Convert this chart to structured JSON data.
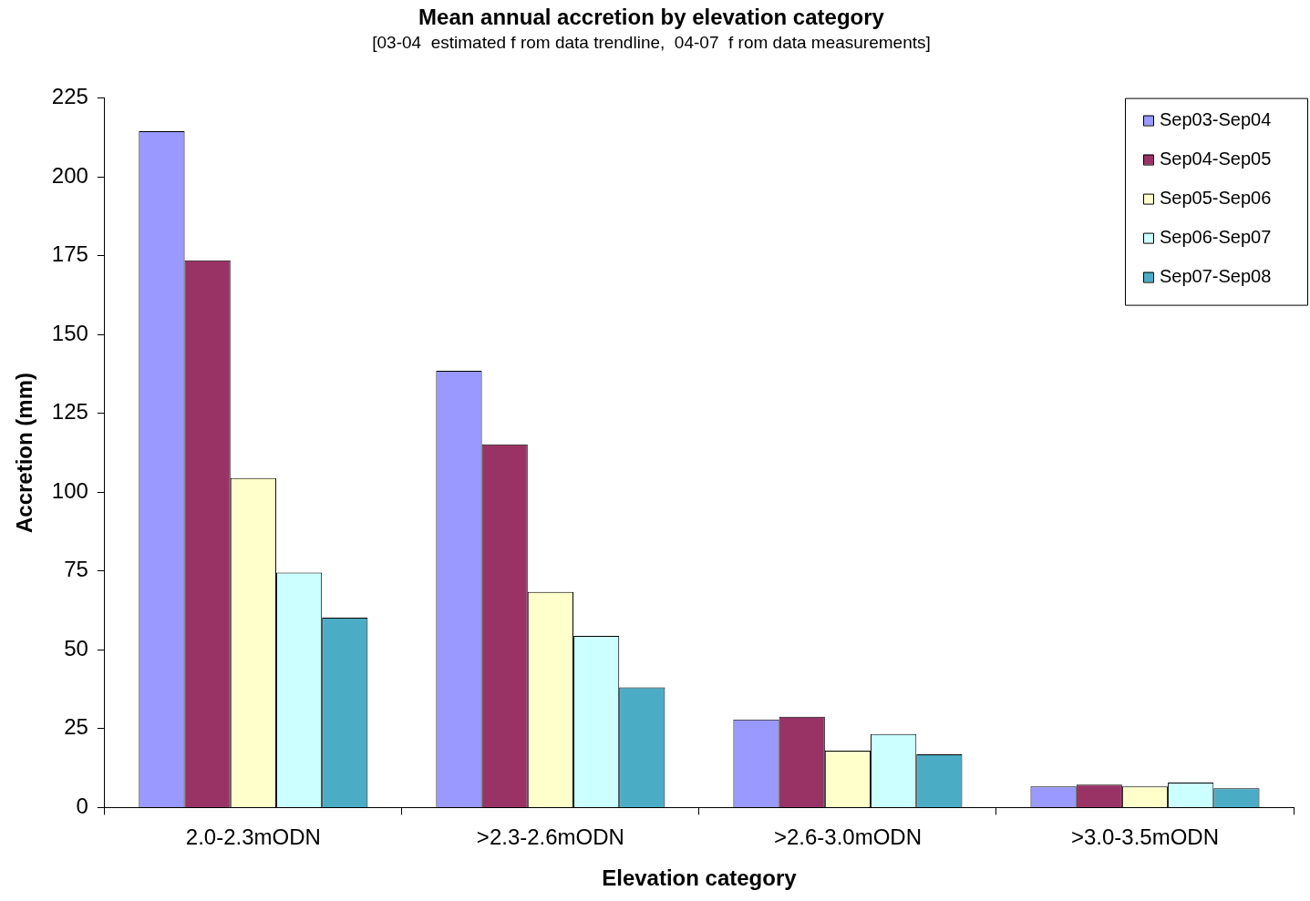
{
  "chart_data": {
    "type": "bar",
    "title": "Mean annual accretion by elevation category",
    "subtitle": "[03-04  estimated f rom data trendline,  04-07  f rom data measurements]",
    "xlabel": "Elevation category",
    "ylabel": "Accretion (mm)",
    "categories": [
      "2.0-2.3mODN",
      ">2.3-2.6mODN",
      ">2.6-3.0mODN",
      ">3.0-3.5mODN"
    ],
    "series": [
      {
        "name": "Sep03-Sep04",
        "color": "#9999ff",
        "values": [
          214.5,
          138.5,
          27.9,
          6.7
        ]
      },
      {
        "name": "Sep04-Sep05",
        "color": "#993366",
        "values": [
          173.5,
          115.2,
          28.8,
          7.3
        ]
      },
      {
        "name": "Sep05-Sep06",
        "color": "#ffffcc",
        "values": [
          104.5,
          68.4,
          18,
          6.7
        ]
      },
      {
        "name": "Sep06-Sep07",
        "color": "#ccffff",
        "values": [
          74.5,
          54.4,
          23.3,
          7.9
        ]
      },
      {
        "name": "Sep07-Sep08",
        "color": "#4bacc6",
        "values": [
          60.2,
          38.1,
          16.9,
          6.1
        ]
      }
    ],
    "ylim": [
      0,
      225
    ],
    "yticks": [
      0,
      25,
      50,
      75,
      100,
      125,
      150,
      175,
      200,
      225
    ],
    "grid": false,
    "legend": "top right"
  }
}
